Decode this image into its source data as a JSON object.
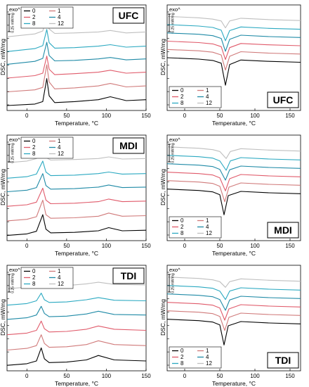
{
  "figure": {
    "panel_labels": [
      "UFC",
      "UFC",
      "MDI",
      "MDI",
      "TDI",
      "TDI"
    ]
  },
  "chart_data": [
    {
      "type": "line",
      "label": "UFC",
      "xlabel": "Temperature, °C",
      "ylabel": "DSC, mW/mg",
      "exo": "exo^",
      "scale_label": "0.25 mW/mg",
      "xlim": [
        -25,
        150
      ],
      "xticks": [
        0,
        50,
        100,
        150
      ],
      "legend_position": "top-left",
      "series": [
        {
          "name": "0",
          "color": "#000000",
          "x": [
            -25,
            10,
            20,
            25,
            28,
            35,
            60,
            90,
            105,
            125,
            150
          ],
          "y": [
            0.0,
            0.03,
            0.08,
            0.55,
            0.2,
            0.06,
            0.08,
            0.12,
            0.18,
            0.1,
            0.12
          ]
        },
        {
          "name": "1",
          "color": "#d07a7a",
          "x": [
            -25,
            10,
            20,
            25,
            28,
            35,
            60,
            90,
            105,
            125,
            150
          ],
          "y": [
            0.0,
            0.04,
            0.09,
            0.55,
            0.2,
            0.06,
            0.08,
            0.12,
            0.17,
            0.1,
            0.12
          ]
        },
        {
          "name": "2",
          "color": "#e05a6a",
          "x": [
            -25,
            10,
            20,
            25,
            28,
            35,
            60,
            90,
            105,
            125,
            150
          ],
          "y": [
            0.0,
            0.05,
            0.1,
            0.45,
            0.18,
            0.07,
            0.09,
            0.12,
            0.16,
            0.1,
            0.12
          ]
        },
        {
          "name": "4",
          "color": "#1f8aa6",
          "x": [
            -25,
            10,
            20,
            25,
            28,
            35,
            60,
            90,
            105,
            125,
            150
          ],
          "y": [
            0.0,
            0.06,
            0.12,
            0.45,
            0.18,
            0.07,
            0.08,
            0.11,
            0.14,
            0.09,
            0.11
          ]
        },
        {
          "name": "8",
          "color": "#2ba9c1",
          "x": [
            -25,
            10,
            20,
            25,
            28,
            35,
            60,
            90,
            105,
            125,
            150
          ],
          "y": [
            0.0,
            0.06,
            0.12,
            0.45,
            0.18,
            0.07,
            0.08,
            0.11,
            0.14,
            0.09,
            0.11
          ]
        },
        {
          "name": "12",
          "color": "#bfbfbf",
          "x": [
            -25,
            10,
            20,
            25,
            28,
            35,
            60,
            90,
            105,
            125,
            150
          ],
          "y": [
            0.0,
            0.06,
            0.12,
            0.4,
            0.16,
            0.07,
            0.08,
            0.1,
            0.13,
            0.08,
            0.1
          ]
        }
      ]
    },
    {
      "type": "line",
      "label": "UFC",
      "xlabel": "Temperature, °C",
      "ylabel": "DSC, mW/mg",
      "exo": "exo^",
      "scale_label": "0.25 mW/mg",
      "xlim": [
        -25,
        165
      ],
      "xticks": [
        0,
        50,
        100,
        150
      ],
      "legend_position": "bottom-left",
      "series": [
        {
          "name": "0",
          "color": "#000000",
          "x": [
            -25,
            20,
            40,
            52,
            58,
            64,
            80,
            120,
            165
          ],
          "y": [
            0.0,
            -0.03,
            -0.06,
            -0.12,
            -0.6,
            -0.15,
            -0.05,
            -0.08,
            -0.1
          ]
        },
        {
          "name": "1",
          "color": "#d07a7a",
          "x": [
            -25,
            20,
            40,
            52,
            58,
            64,
            80,
            120,
            165
          ],
          "y": [
            0.0,
            -0.03,
            -0.06,
            -0.12,
            -0.45,
            -0.15,
            -0.05,
            -0.08,
            -0.1
          ]
        },
        {
          "name": "2",
          "color": "#e05a6a",
          "x": [
            -25,
            20,
            40,
            52,
            58,
            64,
            80,
            120,
            165
          ],
          "y": [
            0.0,
            -0.03,
            -0.06,
            -0.12,
            -0.4,
            -0.14,
            -0.05,
            -0.08,
            -0.1
          ]
        },
        {
          "name": "4",
          "color": "#1f8aa6",
          "x": [
            -25,
            20,
            40,
            52,
            58,
            64,
            80,
            120,
            165
          ],
          "y": [
            0.0,
            -0.03,
            -0.06,
            -0.12,
            -0.4,
            -0.14,
            -0.05,
            -0.08,
            -0.1
          ]
        },
        {
          "name": "8",
          "color": "#2ba9c1",
          "x": [
            -25,
            20,
            40,
            52,
            58,
            64,
            80,
            120,
            165
          ],
          "y": [
            0.0,
            -0.03,
            -0.06,
            -0.12,
            -0.35,
            -0.13,
            -0.05,
            -0.08,
            -0.1
          ]
        },
        {
          "name": "12",
          "color": "#bfbfbf",
          "x": [
            -25,
            20,
            40,
            52,
            58,
            64,
            80,
            120,
            165
          ],
          "y": [
            0.0,
            -0.03,
            -0.06,
            -0.1,
            -0.25,
            -0.1,
            -0.04,
            -0.07,
            -0.09
          ]
        }
      ]
    },
    {
      "type": "line",
      "label": "MDI",
      "xlabel": "Temperature, °C",
      "ylabel": "DSC, mW/mg",
      "exo": "exo^",
      "scale_label": "0.25 mW/mg",
      "xlim": [
        -25,
        150
      ],
      "xticks": [
        0,
        50,
        100,
        150
      ],
      "legend_position": "top-left",
      "series": [
        {
          "name": "0",
          "color": "#000000",
          "x": [
            -25,
            0,
            12,
            20,
            24,
            30,
            60,
            90,
            103,
            120,
            150
          ],
          "y": [
            0.0,
            0.03,
            0.08,
            0.4,
            0.12,
            0.05,
            0.06,
            0.09,
            0.15,
            0.09,
            0.1
          ]
        },
        {
          "name": "1",
          "color": "#d07a7a",
          "x": [
            -25,
            0,
            12,
            20,
            24,
            30,
            60,
            90,
            103,
            120,
            150
          ],
          "y": [
            0.0,
            0.03,
            0.08,
            0.4,
            0.12,
            0.05,
            0.06,
            0.09,
            0.15,
            0.09,
            0.1
          ]
        },
        {
          "name": "2",
          "color": "#e05a6a",
          "x": [
            -25,
            0,
            12,
            20,
            24,
            30,
            60,
            90,
            103,
            120,
            150
          ],
          "y": [
            0.0,
            0.03,
            0.08,
            0.35,
            0.12,
            0.05,
            0.06,
            0.09,
            0.14,
            0.09,
            0.1
          ]
        },
        {
          "name": "4",
          "color": "#1f8aa6",
          "x": [
            -25,
            0,
            12,
            20,
            24,
            30,
            60,
            90,
            103,
            120,
            150
          ],
          "y": [
            0.0,
            0.03,
            0.08,
            0.35,
            0.12,
            0.05,
            0.06,
            0.09,
            0.13,
            0.08,
            0.09
          ]
        },
        {
          "name": "8",
          "color": "#2ba9c1",
          "x": [
            -25,
            0,
            12,
            20,
            24,
            30,
            60,
            90,
            103,
            120,
            150
          ],
          "y": [
            0.0,
            0.03,
            0.08,
            0.33,
            0.12,
            0.05,
            0.06,
            0.09,
            0.12,
            0.08,
            0.09
          ]
        },
        {
          "name": "12",
          "color": "#bfbfbf",
          "x": [
            -25,
            0,
            12,
            20,
            24,
            30,
            60,
            90,
            103,
            120,
            150
          ],
          "y": [
            0.0,
            0.03,
            0.08,
            0.28,
            0.1,
            0.05,
            0.06,
            0.08,
            0.11,
            0.07,
            0.08
          ]
        }
      ]
    },
    {
      "type": "line",
      "label": "MDI",
      "xlabel": "Temperature, °C",
      "ylabel": "DSC, mW/mg",
      "exo": "exo^",
      "scale_label": "0.25 mW/mg",
      "xlim": [
        -25,
        165
      ],
      "xticks": [
        0,
        50,
        100,
        150
      ],
      "legend_position": "bottom-left",
      "series": [
        {
          "name": "0",
          "color": "#000000",
          "x": [
            -25,
            20,
            40,
            50,
            56,
            62,
            80,
            120,
            165
          ],
          "y": [
            0.0,
            -0.03,
            -0.06,
            -0.12,
            -0.55,
            -0.14,
            -0.05,
            -0.08,
            -0.1
          ]
        },
        {
          "name": "1",
          "color": "#d07a7a",
          "x": [
            -25,
            20,
            40,
            50,
            57,
            63,
            80,
            120,
            165
          ],
          "y": [
            0.0,
            -0.03,
            -0.06,
            -0.12,
            -0.45,
            -0.14,
            -0.05,
            -0.08,
            -0.1
          ]
        },
        {
          "name": "2",
          "color": "#e05a6a",
          "x": [
            -25,
            20,
            40,
            50,
            58,
            64,
            80,
            120,
            165
          ],
          "y": [
            0.0,
            -0.03,
            -0.06,
            -0.12,
            -0.4,
            -0.14,
            -0.05,
            -0.08,
            -0.1
          ]
        },
        {
          "name": "4",
          "color": "#1f8aa6",
          "x": [
            -25,
            20,
            40,
            50,
            58,
            64,
            80,
            120,
            165
          ],
          "y": [
            0.0,
            -0.03,
            -0.06,
            -0.12,
            -0.35,
            -0.13,
            -0.05,
            -0.08,
            -0.1
          ]
        },
        {
          "name": "8",
          "color": "#2ba9c1",
          "x": [
            -25,
            20,
            40,
            50,
            59,
            65,
            80,
            120,
            165
          ],
          "y": [
            0.0,
            -0.03,
            -0.06,
            -0.12,
            -0.32,
            -0.12,
            -0.05,
            -0.08,
            -0.1
          ]
        },
        {
          "name": "12",
          "color": "#bfbfbf",
          "x": [
            -25,
            20,
            40,
            50,
            59,
            65,
            80,
            120,
            165
          ],
          "y": [
            0.0,
            -0.03,
            -0.06,
            -0.1,
            -0.25,
            -0.1,
            -0.04,
            -0.07,
            -0.09
          ]
        }
      ]
    },
    {
      "type": "line",
      "label": "TDI",
      "xlabel": "Temperature, °C",
      "ylabel": "DSC, mW/mg",
      "exo": "exo^",
      "scale_label": "0.25 mW/mg",
      "xlim": [
        -25,
        150
      ],
      "xticks": [
        0,
        50,
        100,
        150
      ],
      "legend_position": "top-left",
      "series": [
        {
          "name": "0",
          "color": "#000000",
          "x": [
            -25,
            0,
            12,
            18,
            22,
            28,
            50,
            75,
            90,
            110,
            150
          ],
          "y": [
            0.0,
            0.03,
            0.08,
            0.32,
            0.12,
            0.05,
            0.06,
            0.1,
            0.18,
            0.1,
            0.08
          ]
        },
        {
          "name": "1",
          "color": "#d07a7a",
          "x": [
            -25,
            0,
            12,
            18,
            22,
            28,
            50,
            75,
            90,
            110,
            150
          ],
          "y": [
            0.0,
            0.03,
            0.08,
            0.28,
            0.12,
            0.05,
            0.06,
            0.1,
            0.17,
            0.1,
            0.08
          ]
        },
        {
          "name": "2",
          "color": "#e05a6a",
          "x": [
            -25,
            0,
            12,
            18,
            22,
            28,
            50,
            75,
            90,
            110,
            150
          ],
          "y": [
            0.0,
            0.03,
            0.08,
            0.25,
            0.11,
            0.05,
            0.06,
            0.1,
            0.16,
            0.1,
            0.08
          ]
        },
        {
          "name": "4",
          "color": "#1f8aa6",
          "x": [
            -25,
            0,
            12,
            18,
            22,
            28,
            50,
            75,
            90,
            110,
            150
          ],
          "y": [
            0.0,
            0.03,
            0.08,
            0.24,
            0.11,
            0.05,
            0.06,
            0.1,
            0.15,
            0.09,
            0.08
          ]
        },
        {
          "name": "8",
          "color": "#2ba9c1",
          "x": [
            -25,
            0,
            12,
            18,
            22,
            28,
            50,
            75,
            90,
            110,
            150
          ],
          "y": [
            0.0,
            0.03,
            0.08,
            0.22,
            0.1,
            0.05,
            0.06,
            0.1,
            0.14,
            0.09,
            0.08
          ]
        },
        {
          "name": "12",
          "color": "#bfbfbf",
          "x": [
            -25,
            0,
            12,
            18,
            22,
            28,
            50,
            75,
            90,
            110,
            150
          ],
          "y": [
            0.0,
            0.03,
            0.08,
            0.18,
            0.09,
            0.05,
            0.06,
            0.09,
            0.12,
            0.08,
            0.07
          ]
        }
      ]
    },
    {
      "type": "line",
      "label": "TDI",
      "xlabel": "Temperature, °C",
      "ylabel": "DSC, mW/mg",
      "exo": "exo^",
      "scale_label": "0.25 mW/mg",
      "xlim": [
        -25,
        165
      ],
      "xticks": [
        0,
        50,
        100,
        150
      ],
      "legend_position": "bottom-left",
      "series": [
        {
          "name": "0",
          "color": "#000000",
          "x": [
            -25,
            20,
            40,
            50,
            56,
            62,
            80,
            120,
            165
          ],
          "y": [
            0.0,
            -0.03,
            -0.06,
            -0.12,
            -0.55,
            -0.14,
            -0.05,
            -0.08,
            -0.1
          ]
        },
        {
          "name": "1",
          "color": "#d07a7a",
          "x": [
            -25,
            20,
            40,
            50,
            57,
            63,
            80,
            120,
            165
          ],
          "y": [
            0.0,
            -0.03,
            -0.06,
            -0.12,
            -0.42,
            -0.14,
            -0.05,
            -0.08,
            -0.1
          ]
        },
        {
          "name": "2",
          "color": "#e05a6a",
          "x": [
            -25,
            20,
            40,
            50,
            57,
            63,
            80,
            120,
            165
          ],
          "y": [
            0.0,
            -0.03,
            -0.06,
            -0.12,
            -0.38,
            -0.14,
            -0.05,
            -0.08,
            -0.1
          ]
        },
        {
          "name": "4",
          "color": "#1f8aa6",
          "x": [
            -25,
            20,
            40,
            50,
            58,
            64,
            80,
            120,
            165
          ],
          "y": [
            0.0,
            -0.03,
            -0.06,
            -0.12,
            -0.35,
            -0.13,
            -0.05,
            -0.08,
            -0.1
          ]
        },
        {
          "name": "8",
          "color": "#2ba9c1",
          "x": [
            -25,
            20,
            40,
            50,
            58,
            64,
            80,
            120,
            165
          ],
          "y": [
            0.0,
            -0.03,
            -0.06,
            -0.12,
            -0.3,
            -0.12,
            -0.05,
            -0.08,
            -0.1
          ]
        },
        {
          "name": "12",
          "color": "#bfbfbf",
          "x": [
            -25,
            20,
            40,
            50,
            58,
            64,
            80,
            120,
            165
          ],
          "y": [
            0.0,
            -0.03,
            -0.06,
            -0.1,
            -0.22,
            -0.1,
            -0.04,
            -0.07,
            -0.09
          ]
        }
      ]
    }
  ]
}
